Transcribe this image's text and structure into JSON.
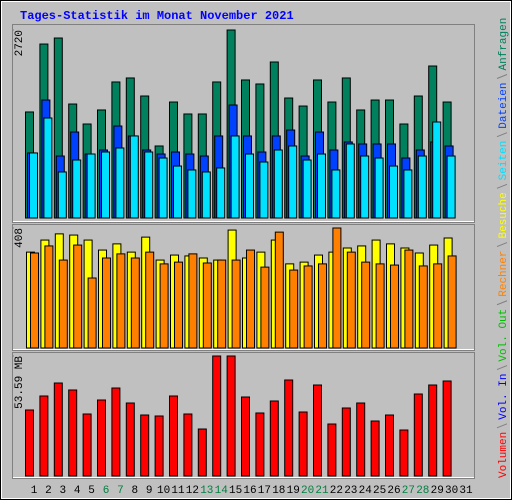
{
  "chart_data": [
    {
      "type": "bar",
      "title": "Tages-Statistik im Monat November 2021",
      "ylim": [
        0,
        2720
      ],
      "yticks": [
        2720
      ],
      "series": [
        {
          "name": "Seiten",
          "color": "#00e0ff",
          "values": [
            941,
            1447,
            666,
            839,
            926,
            955,
            1013,
            1187,
            955,
            868,
            752,
            695,
            666,
            724,
            1187,
            926,
            810,
            984,
            1042,
            839,
            926,
            695,
            1071,
            897,
            868,
            752,
            695,
            897,
            1389,
            897,
            null
          ]
        },
        {
          "name": "Dateien",
          "color": "#0040ff",
          "values": [
            941,
            1707,
            897,
            1244,
            926,
            984,
            1331,
            1187,
            984,
            926,
            955,
            926,
            897,
            1187,
            1635,
            1187,
            955,
            1187,
            1273,
            897,
            1244,
            984,
            1100,
            1071,
            1071,
            1071,
            868,
            984,
            1100,
            1042,
            null
          ]
        },
        {
          "name": "Anfragen",
          "color": "#00805c",
          "values": [
            1534,
            2517,
            2604,
            1649,
            1360,
            1563,
            1968,
            2026,
            1765,
            1042,
            1678,
            1505,
            1505,
            1968,
            2720,
            1997,
            1939,
            2257,
            1736,
            1620,
            1997,
            1678,
            2026,
            1563,
            1707,
            1707,
            1360,
            1765,
            2199,
            1678,
            null
          ]
        }
      ]
    },
    {
      "type": "bar",
      "ylim": [
        0,
        408
      ],
      "yticks": [
        408
      ],
      "series": [
        {
          "name": "Rechner",
          "color": "#ff8000",
          "values": [
            323,
            347,
            299,
            350,
            238,
            306,
            320,
            306,
            326,
            286,
            292,
            320,
            289,
            299,
            299,
            333,
            275,
            394,
            265,
            279,
            286,
            408,
            326,
            292,
            286,
            282,
            333,
            279,
            286,
            313,
            null
          ]
        },
        {
          "name": "Besuche",
          "color": "#ffff00",
          "values": [
            326,
            367,
            388,
            384,
            367,
            333,
            354,
            326,
            377,
            299,
            316,
            313,
            306,
            299,
            401,
            306,
            326,
            367,
            286,
            292,
            316,
            326,
            340,
            347,
            367,
            354,
            340,
            323,
            350,
            374,
            null
          ]
        }
      ]
    },
    {
      "type": "bar",
      "ylim": [
        0,
        53.59
      ],
      "yticks": [
        {
          "value": 53.59,
          "label": "53.59 MB"
        }
      ],
      "categories": [
        "1",
        "2",
        "3",
        "4",
        "5",
        "6",
        "7",
        "8",
        "9",
        "10",
        "11",
        "12",
        "13",
        "14",
        "15",
        "16",
        "17",
        "18",
        "19",
        "20",
        "21",
        "22",
        "23",
        "24",
        "25",
        "26",
        "27",
        "28",
        "29",
        "30",
        "31"
      ],
      "label_colors": [
        "#000",
        "#000",
        "#000",
        "#000",
        "#000",
        "#008040",
        "#008040",
        "#000",
        "#000",
        "#000",
        "#000",
        "#000",
        "#008040",
        "#008040",
        "#000",
        "#000",
        "#000",
        "#000",
        "#000",
        "#008040",
        "#008040",
        "#000",
        "#000",
        "#000",
        "#000",
        "#000",
        "#008040",
        "#008040",
        "#000",
        "#000",
        "#000"
      ],
      "series": [
        {
          "name": "Volumen",
          "color": "#ff0000",
          "values": [
            29.48,
            35.73,
            41.53,
            38.41,
            27.69,
            33.94,
            39.3,
            32.6,
            27.24,
            26.8,
            35.73,
            27.69,
            20.99,
            53.59,
            53.59,
            35.28,
            28.14,
            33.5,
            42.87,
            28.58,
            40.64,
            23.22,
            30.37,
            32.6,
            24.56,
            27.24,
            20.54,
            36.62,
            40.64,
            42.43,
            null
          ]
        },
        {
          "name": "Vol. In",
          "color": "#0000ff"
        },
        {
          "name": "Vol. Out",
          "color": "#00c000"
        }
      ]
    }
  ]
}
